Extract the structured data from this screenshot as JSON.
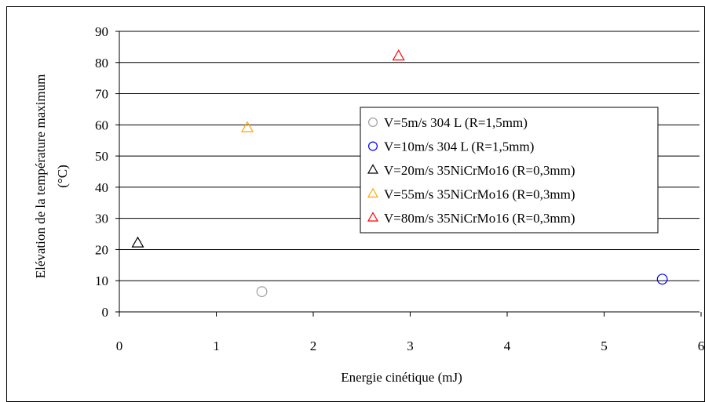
{
  "chart_data": {
    "type": "scatter",
    "xlabel": "Energie cinétique (mJ)",
    "ylabel_line1": "Elévation de la température maximum",
    "ylabel_line2": "(°C)",
    "xlim": [
      0,
      6
    ],
    "ylim": [
      0,
      90
    ],
    "x_ticks": [
      "0",
      "1",
      "2",
      "3",
      "4",
      "5",
      "6"
    ],
    "y_ticks": [
      "0",
      "10",
      "20",
      "30",
      "40",
      "50",
      "60",
      "70",
      "80",
      "90"
    ],
    "grid": "horizontal",
    "legend_position": "right",
    "series": [
      {
        "name": "V=5m/s 304 L (R=1,5mm)",
        "marker": "circle",
        "color": "#a0a0a0",
        "points": [
          {
            "x": 1.47,
            "y": 6.5
          }
        ]
      },
      {
        "name": "V=10m/s 304 L (R=1,5mm)",
        "marker": "circle",
        "color": "#0000ff",
        "points": [
          {
            "x": 5.6,
            "y": 10.5
          }
        ]
      },
      {
        "name": "V=20m/s 35NiCrMo16 (R=0,3mm)",
        "marker": "triangle",
        "color": "#000000",
        "points": [
          {
            "x": 0.19,
            "y": 22
          }
        ]
      },
      {
        "name": "V=55m/s 35NiCrMo16 (R=0,3mm)",
        "marker": "triangle",
        "color": "#ffa500",
        "points": [
          {
            "x": 1.32,
            "y": 59
          }
        ]
      },
      {
        "name": "V=80m/s 35NiCrMo16 (R=0,3mm)",
        "marker": "triangle",
        "color": "#ff0000",
        "points": [
          {
            "x": 2.88,
            "y": 82
          }
        ]
      }
    ]
  }
}
